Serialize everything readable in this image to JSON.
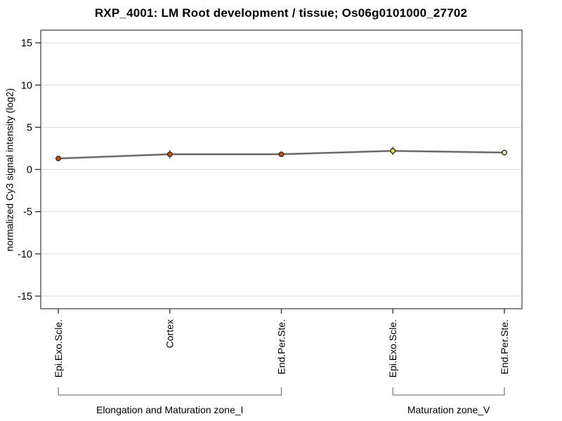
{
  "chart_data": {
    "type": "line",
    "title": "RXP_4001: LM Root development / tissue; Os06g0101000_27702",
    "ylabel": "normalized Cy3 signal intensity (log2)",
    "xlabel": "",
    "ylim": [
      -16.5,
      16.5
    ],
    "yticks": [
      15,
      10,
      5,
      0,
      -5,
      -10,
      -15
    ],
    "grid": "horizontal",
    "legend": "none",
    "categories": [
      "Epi.Exo.Scle.",
      "Cortex",
      "End.Per.Ste.",
      "Epi.Exo.Scle.",
      "End.Per.Ste."
    ],
    "series": [
      {
        "name": "normalized Cy3 signal intensity (log2)",
        "values": [
          1.3,
          1.8,
          1.8,
          2.2,
          2.0
        ],
        "se": [
          0.15,
          0.5,
          0.2,
          0.5,
          0.2
        ]
      }
    ],
    "point_colors": [
      "#d35400",
      "#d35400",
      "#d35400",
      "#e2e23c",
      "#e9ecb2"
    ],
    "groups": [
      {
        "label": "Elongation and Maturation zone_I",
        "from": 0,
        "to": 2
      },
      {
        "label": "Maturation zone_V",
        "from": 3,
        "to": 4
      }
    ],
    "colors": {
      "grid": "#dcdcdc",
      "axis": "#4a4a4a",
      "tick": "#303030",
      "line": "#555555",
      "line_halo": "#c4c4c4",
      "marker_stroke": "#1a1a1a",
      "bracket": "#808080",
      "text": "#000000"
    }
  }
}
